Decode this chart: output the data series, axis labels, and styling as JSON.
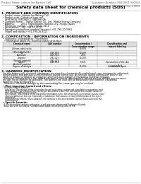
{
  "background_color": "#ffffff",
  "header_left": "Product Name: Lithium Ion Battery Cell",
  "header_right": "Substance Number: SDS-0001 000010\nEstablishment / Revision: Dec.1.2019",
  "main_title": "Safety data sheet for chemical products (SDS)",
  "section1_title": "1. PRODUCT AND COMPANY IDENTIFICATION",
  "section1_lines": [
    "  • Product name: Lithium Ion Battery Cell",
    "  • Product code: Cylindrical-type cell",
    "     INR18650J, INR18650L, INR18650A",
    "  • Company name:    Sanyo Electric Co., Ltd.  Mobile Energy Company",
    "  • Address:         2001  Kamishinden, Sumoto-City, Hyogo, Japan",
    "  • Telephone number:   +81-799-20-4111",
    "  • Fax number:   +81-799-26-4120",
    "  • Emergency telephone number (daytime) +81-799-20-3962",
    "     (Night and holiday) +81-799-26-4121"
  ],
  "section2_title": "2. COMPOSITION / INFORMATION ON INGREDIENTS",
  "section2_intro": "  • Substance or preparation: Preparation",
  "section2_sub": "    • Information about the chemical nature of product:",
  "table_headers": [
    "Chemical name",
    "CAS number",
    "Concentration /\nConcentration range",
    "Classification and\nhazard labeling"
  ],
  "table_rows": [
    [
      "Lithium cobalt oxide\n(LiMn-CoO2(CoO2))",
      "-",
      "30-60%",
      "-"
    ],
    [
      "Iron",
      "7439-89-6",
      "10-20%",
      "-"
    ],
    [
      "Aluminum",
      "7429-90-5",
      "2-6%",
      "-"
    ],
    [
      "Graphite\n(Natural graphite)\n(Artificial graphite)",
      "7782-42-5\n7782-42-5",
      "10-20%",
      "-"
    ],
    [
      "Copper",
      "7440-50-8",
      "5-15%",
      "Sensitization of the skin\ngroup No.2"
    ],
    [
      "Organic electrolyte",
      "-",
      "10-20%",
      "Inflammable liquid"
    ]
  ],
  "section3_title": "3. HAZARDS IDENTIFICATION",
  "section3_para1": "  For this battery cell, chemical substances are stored in a hermetically sealed steel case, designed to withstand",
  "section3_para2": "  temperatures and pressures-concentrations during normal use. As a result, during normal use, there is no",
  "section3_para3": "  physical danger of ignition or explosion and there is no danger of hazardous materials leakage.",
  "section3_para4": "    However, if exposed to a fire, added mechanical shocks, decomposed, written electric without any measure,",
  "section3_para5": "  the gas inside content be operated. The battery cell case will be breached of the extreme, hazardous",
  "section3_para6": "  materials may be released.",
  "section3_para7": "    Moreover, if heated strongly by the surrounding fire, some gas may be emitted.",
  "section3_bullet1": "  • Most important hazard and effects:",
  "section3_human": "    Human health effects:",
  "section3_human_lines": [
    "      Inhalation: The release of the electrolyte has an anesthetics action and stimulates a respiratory tract.",
    "      Skin contact: The release of the electrolyte stimulates a skin. The electrolyte skin contact causes a",
    "      sore and stimulation on the skin.",
    "      Eye contact: The release of the electrolyte stimulates eyes. The electrolyte eye contact causes a sore",
    "      and stimulation on the eye. Especially, a substance that causes a strong inflammation of the eye is",
    "      contained.",
    "      Environmental effects: Since a battery cell remains in the environment, do not throw out it into the",
    "      environment."
  ],
  "section3_specific": "  • Specific hazards:",
  "section3_specific_lines": [
    "    If the electrolyte contacts with water, it will generate detrimental hydrogen fluoride.",
    "    Since the used electrolyte is inflammable liquid, do not bring close to fire."
  ]
}
